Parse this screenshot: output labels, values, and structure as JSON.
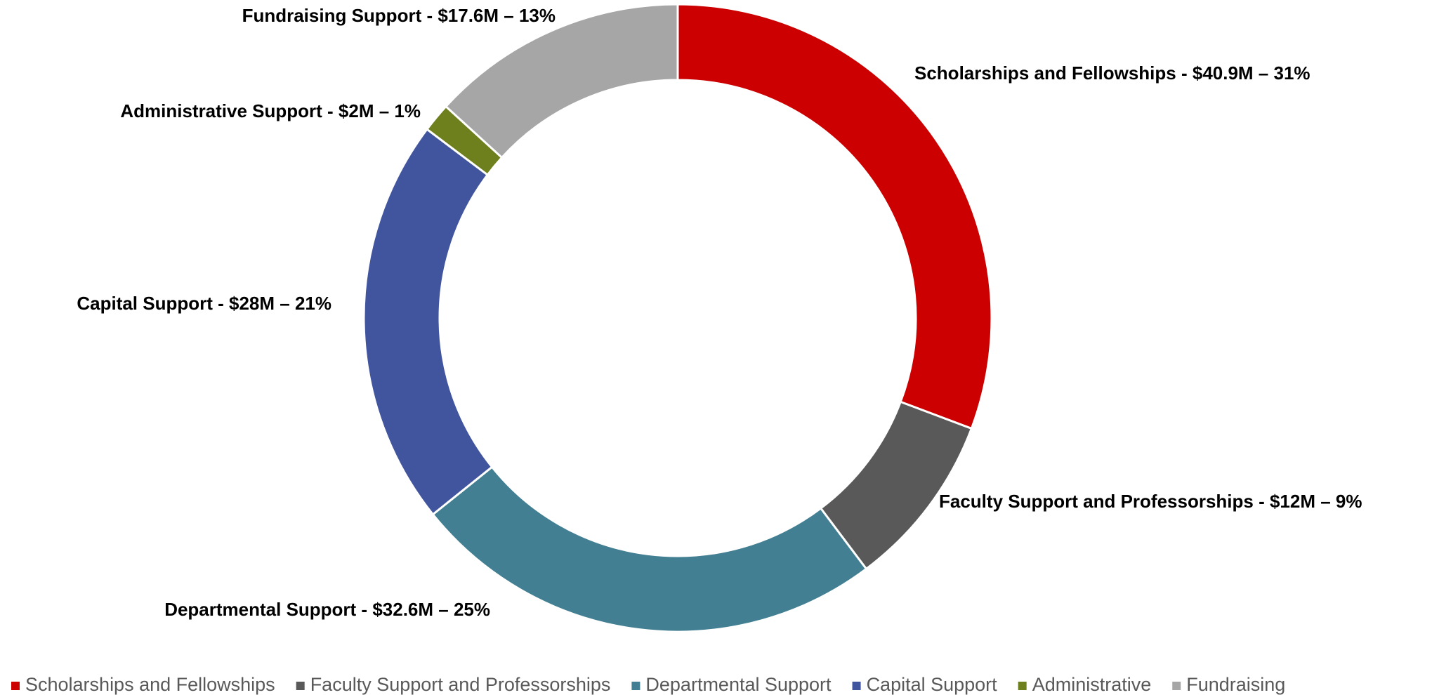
{
  "chart_data": {
    "type": "donut",
    "categories": [
      "Scholarships and Fellowships",
      "Faculty Support and Professorships",
      "Departmental Support",
      "Capital Support",
      "Administrative",
      "Fundraising"
    ],
    "values": [
      40.9,
      12,
      32.6,
      28,
      2,
      17.6
    ],
    "value_labels": [
      "Scholarships and Fellowships - $40.9M – 31%",
      "Faculty Support and Professorships - $12M – 9%",
      "Departmental Support - $32.6M – 25%",
      "Capital Support - $28M – 21%",
      "Administrative Support - $2M –  1%",
      "Fundraising Support - $17.6M –  13%"
    ],
    "colors": [
      "#cc0000",
      "#595959",
      "#427f92",
      "#41549e",
      "#6e7f1d",
      "#a6a6a6"
    ],
    "legend": "bottom"
  }
}
